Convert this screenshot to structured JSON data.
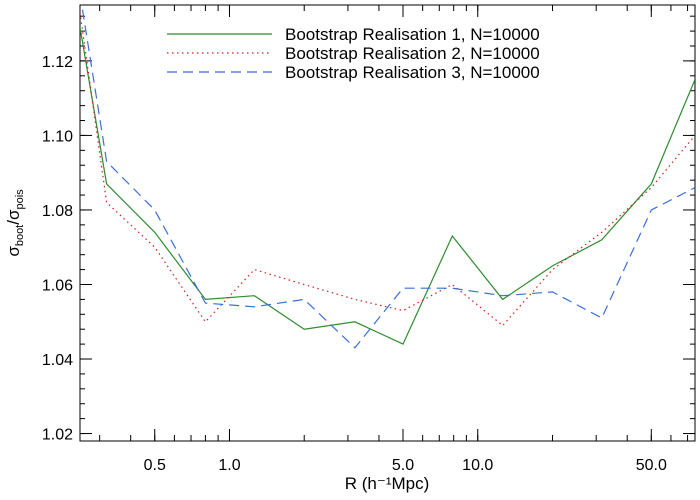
{
  "chart_data": {
    "type": "line",
    "title": "",
    "xlabel": "R (h⁻¹Mpc)",
    "ylabel": "σboot/σpois",
    "ylabel_parts": {
      "sigma1": "σ",
      "sub1": "boot",
      "slash": "/",
      "sigma2": "σ",
      "sub2": "pois"
    },
    "xscale": "log",
    "xlim": [
      0.25,
      75
    ],
    "ylim": [
      1.018,
      1.135
    ],
    "grid": false,
    "legend_position": "top-right",
    "xticks_major": [
      {
        "value": 0.5,
        "label": "0.5"
      },
      {
        "value": 1.0,
        "label": "1.0"
      },
      {
        "value": 5.0,
        "label": "5.0"
      },
      {
        "value": 10.0,
        "label": "10.0"
      },
      {
        "value": 50.0,
        "label": "50.0"
      }
    ],
    "yticks_major": [
      {
        "value": 1.02,
        "label": "1.02"
      },
      {
        "value": 1.04,
        "label": "1.04"
      },
      {
        "value": 1.06,
        "label": "1.06"
      },
      {
        "value": 1.08,
        "label": "1.08"
      },
      {
        "value": 1.1,
        "label": "1.10"
      },
      {
        "value": 1.12,
        "label": "1.12"
      }
    ],
    "series": [
      {
        "name": "Bootstrap Realisation 1, N=10000",
        "color": "#2e8b2e",
        "dash": "solid",
        "x": [
          0.25,
          0.32,
          0.5,
          0.8,
          1.26,
          2.0,
          3.2,
          5.0,
          7.9,
          12.6,
          20.0,
          31.6,
          50.0,
          75.0
        ],
        "y": [
          1.129,
          1.087,
          1.074,
          1.056,
          1.057,
          1.048,
          1.05,
          1.044,
          1.073,
          1.056,
          1.065,
          1.072,
          1.087,
          1.115
        ]
      },
      {
        "name": "Bootstrap Realisation 2, N=10000",
        "color": "#cc2222",
        "dash": "dotted",
        "x": [
          0.25,
          0.32,
          0.5,
          0.8,
          1.26,
          2.0,
          3.2,
          5.0,
          7.9,
          12.6,
          20.0,
          31.6,
          50.0,
          75.0
        ],
        "y": [
          1.133,
          1.082,
          1.07,
          1.05,
          1.064,
          1.06,
          1.056,
          1.053,
          1.06,
          1.049,
          1.064,
          1.074,
          1.086,
          1.1
        ]
      },
      {
        "name": "Bootstrap Realisation 3, N=10000",
        "color": "#3a6fd8",
        "dash": "dashed",
        "x": [
          0.25,
          0.32,
          0.5,
          0.8,
          1.26,
          2.0,
          3.2,
          5.0,
          7.9,
          12.6,
          20.0,
          31.6,
          50.0,
          75.0
        ],
        "y": [
          1.138,
          1.093,
          1.08,
          1.055,
          1.054,
          1.056,
          1.043,
          1.059,
          1.059,
          1.057,
          1.058,
          1.051,
          1.08,
          1.086
        ]
      }
    ]
  }
}
